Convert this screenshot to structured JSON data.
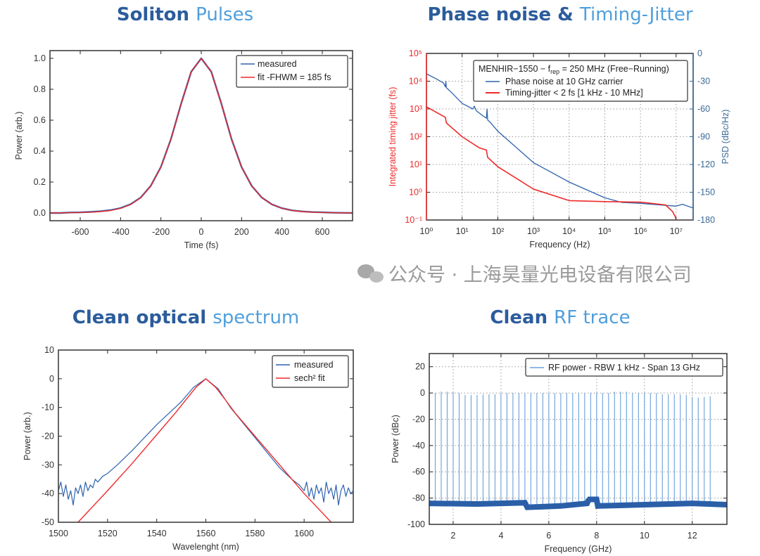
{
  "titles": [
    {
      "dark": "Soliton",
      "light": "Pulses"
    },
    {
      "dark": "Phase noise &",
      "light": "Timing-Jitter"
    },
    {
      "dark": "Clean optical",
      "light": "spectrum"
    },
    {
      "dark": "Clean",
      "light": "RF trace"
    }
  ],
  "watermark": "公众号 · 上海昊量光电设备有限公司",
  "colors": {
    "title_dark": "#2b5c9c",
    "title_light": "#4f9fdc",
    "measured": "#2e63ad",
    "fit": "#ee2a2a",
    "rf": "#6a9fd8",
    "jitter_axis": "#ee2a2a",
    "psd_axis": "#3a6a96"
  },
  "chart_data": [
    {
      "type": "line",
      "xlabel": "Time (fs)",
      "ylabel": "Power (arb.)",
      "xlim": [
        -750,
        750
      ],
      "ylim": [
        -0.05,
        1.05
      ],
      "grid": false,
      "legend_placement": "top-right",
      "xticks": [
        -600,
        -400,
        -200,
        0,
        200,
        400,
        600
      ],
      "xtick_labels": [
        "-600",
        "-400",
        "-200",
        "0",
        "200",
        "400",
        "600"
      ],
      "yticks": [
        0,
        0.2,
        0.4,
        0.6,
        0.8,
        1.0
      ],
      "ytick_labels": [
        "0.0",
        "0.2",
        "0.4",
        "0.6",
        "0.8",
        "1.0"
      ],
      "series": [
        {
          "name": "measured",
          "color": "#2e63ad",
          "x": [
            -750,
            -700,
            -650,
            -600,
            -550,
            -500,
            -450,
            -400,
            -350,
            -300,
            -250,
            -200,
            -150,
            -100,
            -50,
            0,
            50,
            100,
            150,
            200,
            250,
            300,
            350,
            400,
            450,
            500,
            550,
            600,
            650,
            700,
            750
          ],
          "y": [
            0.0,
            0.0,
            0.003,
            0.004,
            0.007,
            0.011,
            0.018,
            0.032,
            0.057,
            0.1,
            0.176,
            0.298,
            0.479,
            0.705,
            0.913,
            1.0,
            0.913,
            0.705,
            0.478,
            0.297,
            0.175,
            0.1,
            0.056,
            0.031,
            0.017,
            0.01,
            0.006,
            0.004,
            0.002,
            0.001,
            0.0
          ]
        },
        {
          "name": "fit -FHWM = 185 fs",
          "color": "#ee2a2a",
          "x": [
            -750,
            -700,
            -650,
            -600,
            -550,
            -500,
            -450,
            -400,
            -350,
            -300,
            -250,
            -200,
            -150,
            -100,
            -50,
            0,
            50,
            100,
            150,
            200,
            250,
            300,
            350,
            400,
            450,
            500,
            550,
            600,
            650,
            700,
            750
          ],
          "y": [
            0.0,
            0.001,
            0.002,
            0.003,
            0.005,
            0.009,
            0.016,
            0.03,
            0.055,
            0.099,
            0.175,
            0.297,
            0.478,
            0.705,
            0.913,
            1.0,
            0.913,
            0.705,
            0.478,
            0.297,
            0.175,
            0.099,
            0.055,
            0.03,
            0.016,
            0.009,
            0.005,
            0.003,
            0.002,
            0.001,
            0.0
          ]
        }
      ]
    },
    {
      "type": "line",
      "xlabel": "Frequency (Hz)",
      "ylabel": "Integrated timing jitter (fs)",
      "ylabel_right": "PSD (dBc/Hz)",
      "xscale": "log",
      "yscale": "log",
      "xlim": [
        1,
        30000000
      ],
      "ylim": [
        0.1,
        100000
      ],
      "ylim_right": [
        -180,
        0
      ],
      "grid": true,
      "legend_placement": "top-right",
      "xticks": [
        1,
        10,
        100,
        1000,
        10000,
        100000,
        1000000,
        10000000
      ],
      "xtick_labels": [
        "10⁰",
        "10¹",
        "10²",
        "10³",
        "10⁴",
        "10⁵",
        "10⁶",
        "10⁷"
      ],
      "yticks": [
        0.1,
        1,
        10,
        100,
        1000,
        10000,
        100000
      ],
      "ytick_labels": [
        "10⁻¹",
        "10⁰",
        "10¹",
        "10²",
        "10³",
        "10⁴",
        "10⁵"
      ],
      "yticks_right": [
        -180,
        -150,
        -120,
        -90,
        -60,
        -30,
        0
      ],
      "ytick_labels_right": [
        "-180",
        "-150",
        "-120",
        "-90",
        "-60",
        "-30",
        "0"
      ],
      "legend_title": {
        "pre": "MENHIR−1550 − f",
        "sub": "rep",
        "post": " = 250 MHz (Free−Running)"
      },
      "series": [
        {
          "name": "Phase noise at 10 GHz carrier",
          "axis": "right",
          "color": "#2e63ad",
          "x": [
            1,
            2,
            3,
            3.4,
            3.5,
            3.6,
            5,
            10,
            20,
            22,
            25,
            40,
            48,
            50,
            52,
            60,
            100,
            1000,
            10000,
            100000,
            300000,
            1000000,
            10000000,
            15000000,
            30000000
          ],
          "y": [
            -22,
            -28,
            -32,
            -36,
            -30,
            -37,
            -42,
            -54,
            -60,
            -57,
            -62,
            -68,
            -70,
            -60,
            -72,
            -74,
            -84,
            -118,
            -139,
            -156,
            -161,
            -162,
            -165,
            -163,
            -167
          ]
        },
        {
          "name": "Timing-jitter < 2 fs [1 kHz - 10 MHz]",
          "axis": "left",
          "color": "#ee2a2a",
          "x": [
            1,
            3.4,
            3.6,
            4,
            10,
            30,
            48,
            52,
            100,
            1000,
            10000,
            100000,
            1000000,
            5000000,
            8000000,
            9500000,
            10000000
          ],
          "y": [
            1200,
            500,
            320,
            280,
            100,
            40,
            33,
            18,
            8.3,
            1.3,
            0.5,
            0.46,
            0.44,
            0.35,
            0.2,
            0.13,
            0.1
          ]
        }
      ]
    },
    {
      "type": "line",
      "xlabel": "Wavelenght (nm)",
      "ylabel": "Power (arb.)",
      "xlim": [
        1500,
        1620
      ],
      "ylim": [
        -50,
        10
      ],
      "grid": false,
      "legend_placement": "top-right",
      "xticks": [
        1500,
        1520,
        1540,
        1560,
        1580,
        1600
      ],
      "xtick_labels": [
        "1500",
        "1520",
        "1540",
        "1560",
        "1580",
        "1600"
      ],
      "yticks": [
        -50,
        -40,
        -30,
        -20,
        -10,
        0,
        10
      ],
      "ytick_labels": [
        "-50",
        "-40",
        "-30",
        "-20",
        "-10",
        "0",
        "10"
      ],
      "series": [
        {
          "name": "measured",
          "color": "#2e63ad",
          "x": [
            1500,
            1501,
            1502,
            1503,
            1504,
            1505,
            1506,
            1507,
            1508,
            1509,
            1510,
            1511,
            1512,
            1513,
            1514,
            1515,
            1516,
            1518,
            1520,
            1524,
            1530,
            1540,
            1550,
            1555,
            1560,
            1565,
            1570,
            1580,
            1590,
            1595,
            1598,
            1600,
            1601,
            1602,
            1603,
            1604,
            1605,
            1606,
            1607,
            1608,
            1609,
            1610,
            1611,
            1612,
            1613,
            1614,
            1615,
            1616,
            1617,
            1618,
            1619,
            1620
          ],
          "y": [
            -39,
            -36,
            -41,
            -37,
            -42,
            -39,
            -44,
            -38,
            -40,
            -37,
            -41,
            -36,
            -39,
            -37,
            -38,
            -35,
            -36,
            -34,
            -33,
            -30,
            -25,
            -16,
            -8,
            -3,
            0,
            -3.5,
            -10,
            -20.5,
            -31,
            -35,
            -37,
            -39,
            -36,
            -41,
            -38,
            -42,
            -37,
            -40,
            -38,
            -43,
            -36,
            -40,
            -38,
            -42,
            -37,
            -44,
            -39,
            -37,
            -41,
            -38,
            -40,
            -39
          ]
        },
        {
          "name": "sech² fit",
          "color": "#ee2a2a",
          "x": [
            1508,
            1520,
            1530,
            1540,
            1548,
            1552,
            1556,
            1560,
            1564,
            1568,
            1572,
            1580,
            1590,
            1600,
            1611
          ],
          "y": [
            -50,
            -39,
            -29.5,
            -19.5,
            -11.5,
            -7.2,
            -3,
            0,
            -3,
            -7.4,
            -12,
            -20,
            -30,
            -40,
            -50
          ]
        }
      ]
    },
    {
      "type": "line",
      "xlabel": "Frequency (GHz)",
      "ylabel": "Power (dBc)",
      "xlim": [
        1,
        13.45
      ],
      "ylim": [
        -100,
        30
      ],
      "grid": true,
      "legend_placement": "top-right",
      "xticks": [
        2,
        4,
        6,
        8,
        10,
        12
      ],
      "xtick_labels": [
        "2",
        "4",
        "6",
        "8",
        "10",
        "12"
      ],
      "yticks": [
        -100,
        -80,
        -60,
        -40,
        -20,
        0,
        20
      ],
      "ytick_labels": [
        "-100",
        "-80",
        "-60",
        "-40",
        "-20",
        "0",
        "20"
      ],
      "series": [
        {
          "name": "RF power - RBW 1 kHz - Span 13 GHz",
          "color": "#6a9fd8",
          "peaks_x_start": 1.25,
          "peaks_x_step": 0.25,
          "peaks_y": [
            0,
            1,
            1,
            1,
            0,
            -1.5,
            -1.5,
            -1.5,
            -1,
            -1,
            -1,
            0,
            0,
            0,
            0,
            0,
            0,
            0,
            0,
            0,
            0,
            0,
            0,
            0,
            0,
            0,
            0,
            0,
            0,
            0,
            1,
            1,
            1,
            0,
            0,
            0,
            0,
            0,
            -1,
            -1,
            -1,
            -1,
            -1.5,
            -3,
            -3.5,
            -3,
            -2.5
          ],
          "floor_x": [
            1,
            3,
            5,
            5.1,
            6.5,
            7.6,
            7.65,
            7.7,
            8.0,
            8.05,
            10,
            12,
            13.45
          ],
          "floor_y": [
            -84,
            -84.5,
            -83.5,
            -87,
            -86,
            -84,
            -82,
            -81,
            -81,
            -86,
            -85,
            -84,
            -85
          ]
        }
      ]
    }
  ]
}
